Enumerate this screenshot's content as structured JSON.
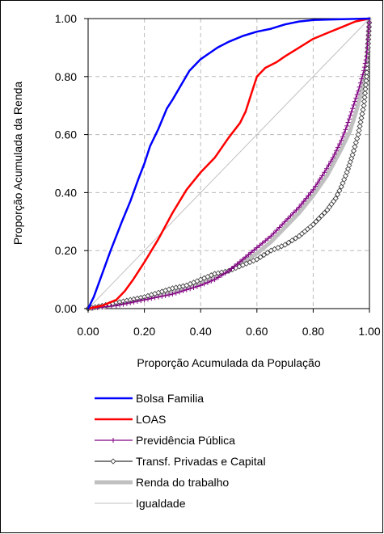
{
  "chart_data": {
    "type": "line",
    "xlabel": "Proporção Acumulada da População",
    "ylabel": "Proporção Acumulada da Renda",
    "xlim": [
      0,
      1
    ],
    "ylim": [
      0,
      1
    ],
    "x_ticks": [
      "0.00",
      "0.20",
      "0.40",
      "0.60",
      "0.80",
      "1.00"
    ],
    "y_ticks": [
      "0.00",
      "0.20",
      "0.40",
      "0.60",
      "0.80",
      "1.00"
    ],
    "grid": "dashed",
    "legend_position": "bottom",
    "series": [
      {
        "name": "Bolsa Familia",
        "color": "#0000ff",
        "marker": "none",
        "points": [
          [
            0,
            0
          ],
          [
            0.02,
            0.04
          ],
          [
            0.05,
            0.12
          ],
          [
            0.08,
            0.2
          ],
          [
            0.1,
            0.25
          ],
          [
            0.12,
            0.3
          ],
          [
            0.15,
            0.37
          ],
          [
            0.18,
            0.45
          ],
          [
            0.2,
            0.5
          ],
          [
            0.22,
            0.56
          ],
          [
            0.25,
            0.62
          ],
          [
            0.28,
            0.69
          ],
          [
            0.3,
            0.72
          ],
          [
            0.33,
            0.77
          ],
          [
            0.36,
            0.82
          ],
          [
            0.4,
            0.86
          ],
          [
            0.43,
            0.88
          ],
          [
            0.46,
            0.9
          ],
          [
            0.5,
            0.92
          ],
          [
            0.55,
            0.94
          ],
          [
            0.6,
            0.955
          ],
          [
            0.65,
            0.965
          ],
          [
            0.7,
            0.98
          ],
          [
            0.75,
            0.99
          ],
          [
            0.8,
            0.995
          ],
          [
            0.9,
            0.998
          ],
          [
            1.0,
            1.0
          ]
        ]
      },
      {
        "name": "LOAS",
        "color": "#ff0000",
        "marker": "none",
        "points": [
          [
            0,
            0
          ],
          [
            0.05,
            0.01
          ],
          [
            0.1,
            0.03
          ],
          [
            0.13,
            0.06
          ],
          [
            0.16,
            0.1
          ],
          [
            0.2,
            0.16
          ],
          [
            0.25,
            0.24
          ],
          [
            0.3,
            0.33
          ],
          [
            0.35,
            0.41
          ],
          [
            0.4,
            0.47
          ],
          [
            0.45,
            0.52
          ],
          [
            0.5,
            0.59
          ],
          [
            0.54,
            0.64
          ],
          [
            0.56,
            0.68
          ],
          [
            0.58,
            0.74
          ],
          [
            0.6,
            0.8
          ],
          [
            0.63,
            0.83
          ],
          [
            0.67,
            0.85
          ],
          [
            0.7,
            0.87
          ],
          [
            0.75,
            0.9
          ],
          [
            0.8,
            0.93
          ],
          [
            0.85,
            0.95
          ],
          [
            0.9,
            0.97
          ],
          [
            0.95,
            0.99
          ],
          [
            1.0,
            1.0
          ]
        ]
      },
      {
        "name": "Previdência Pública",
        "color": "#800080",
        "marker": "plus",
        "points": [
          [
            0,
            0
          ],
          [
            0.05,
            0.005
          ],
          [
            0.1,
            0.01
          ],
          [
            0.15,
            0.02
          ],
          [
            0.2,
            0.03
          ],
          [
            0.25,
            0.04
          ],
          [
            0.3,
            0.05
          ],
          [
            0.35,
            0.065
          ],
          [
            0.4,
            0.08
          ],
          [
            0.45,
            0.1
          ],
          [
            0.5,
            0.13
          ],
          [
            0.55,
            0.17
          ],
          [
            0.6,
            0.21
          ],
          [
            0.65,
            0.25
          ],
          [
            0.7,
            0.3
          ],
          [
            0.75,
            0.35
          ],
          [
            0.8,
            0.41
          ],
          [
            0.84,
            0.47
          ],
          [
            0.87,
            0.52
          ],
          [
            0.9,
            0.58
          ],
          [
            0.92,
            0.63
          ],
          [
            0.94,
            0.69
          ],
          [
            0.96,
            0.75
          ],
          [
            0.98,
            0.82
          ],
          [
            0.99,
            0.87
          ],
          [
            1.0,
            1.0
          ]
        ]
      },
      {
        "name": "Transf. Privadas e Capital",
        "color": "#333333",
        "marker": "diamond",
        "points": [
          [
            0,
            0
          ],
          [
            0.05,
            0.01
          ],
          [
            0.1,
            0.02
          ],
          [
            0.15,
            0.03
          ],
          [
            0.2,
            0.04
          ],
          [
            0.25,
            0.055
          ],
          [
            0.3,
            0.07
          ],
          [
            0.35,
            0.08
          ],
          [
            0.4,
            0.1
          ],
          [
            0.45,
            0.12
          ],
          [
            0.5,
            0.13
          ],
          [
            0.55,
            0.15
          ],
          [
            0.6,
            0.17
          ],
          [
            0.65,
            0.2
          ],
          [
            0.7,
            0.22
          ],
          [
            0.75,
            0.25
          ],
          [
            0.8,
            0.29
          ],
          [
            0.85,
            0.34
          ],
          [
            0.88,
            0.38
          ],
          [
            0.9,
            0.42
          ],
          [
            0.92,
            0.47
          ],
          [
            0.94,
            0.53
          ],
          [
            0.96,
            0.6
          ],
          [
            0.98,
            0.7
          ],
          [
            0.99,
            0.8
          ],
          [
            1.0,
            1.0
          ]
        ]
      },
      {
        "name": "Renda do trabalho",
        "color": "#c0c0c0",
        "marker": "none",
        "points": [
          [
            0,
            0
          ],
          [
            0.05,
            0.005
          ],
          [
            0.1,
            0.015
          ],
          [
            0.2,
            0.035
          ],
          [
            0.3,
            0.06
          ],
          [
            0.4,
            0.09
          ],
          [
            0.5,
            0.13
          ],
          [
            0.55,
            0.16
          ],
          [
            0.6,
            0.19
          ],
          [
            0.65,
            0.23
          ],
          [
            0.7,
            0.28
          ],
          [
            0.75,
            0.33
          ],
          [
            0.8,
            0.39
          ],
          [
            0.85,
            0.46
          ],
          [
            0.9,
            0.55
          ],
          [
            0.93,
            0.61
          ],
          [
            0.95,
            0.67
          ],
          [
            0.97,
            0.74
          ],
          [
            0.99,
            0.84
          ],
          [
            1.0,
            1.0
          ]
        ]
      },
      {
        "name": "Igualdade",
        "color": "#c0c0c0",
        "marker": "none",
        "points": [
          [
            0,
            0
          ],
          [
            1,
            1
          ]
        ]
      }
    ]
  }
}
